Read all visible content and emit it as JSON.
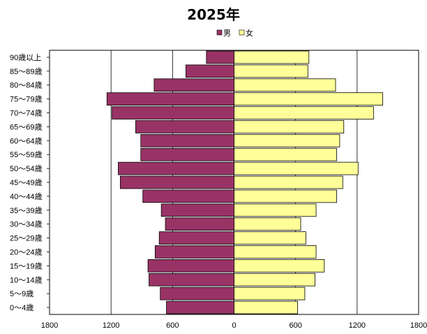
{
  "chart_data": {
    "type": "bar",
    "orientation": "horizontal",
    "title": "2025年",
    "categories": [
      "0～4歳",
      "5～9歳",
      "10～14歳",
      "15～19歳",
      "20～24歳",
      "25～29歳",
      "30～34歳",
      "35～39歳",
      "40～44歳",
      "45～49歳",
      "50～54歳",
      "55～59歳",
      "60～64歳",
      "65～69歳",
      "70～74歳",
      "75～79歳",
      "80～84歳",
      "85～89歳",
      "90歳以上"
    ],
    "series": [
      {
        "name": "男",
        "color": "#993366",
        "values": [
          660,
          720,
          830,
          840,
          770,
          730,
          670,
          710,
          890,
          1110,
          1130,
          910,
          910,
          960,
          1190,
          1240,
          780,
          470,
          270
        ]
      },
      {
        "name": "女",
        "color": "#ffff99",
        "values": [
          620,
          690,
          790,
          880,
          800,
          700,
          650,
          800,
          1000,
          1060,
          1210,
          1000,
          1030,
          1070,
          1360,
          1450,
          990,
          720,
          730
        ]
      }
    ],
    "xaxis_ticks": [
      "1800",
      "1200",
      "600",
      "0",
      "600",
      "1200",
      "1800"
    ],
    "xlim": [
      -1800,
      1800
    ],
    "grid": "vertical",
    "legend_position": "top-center"
  }
}
